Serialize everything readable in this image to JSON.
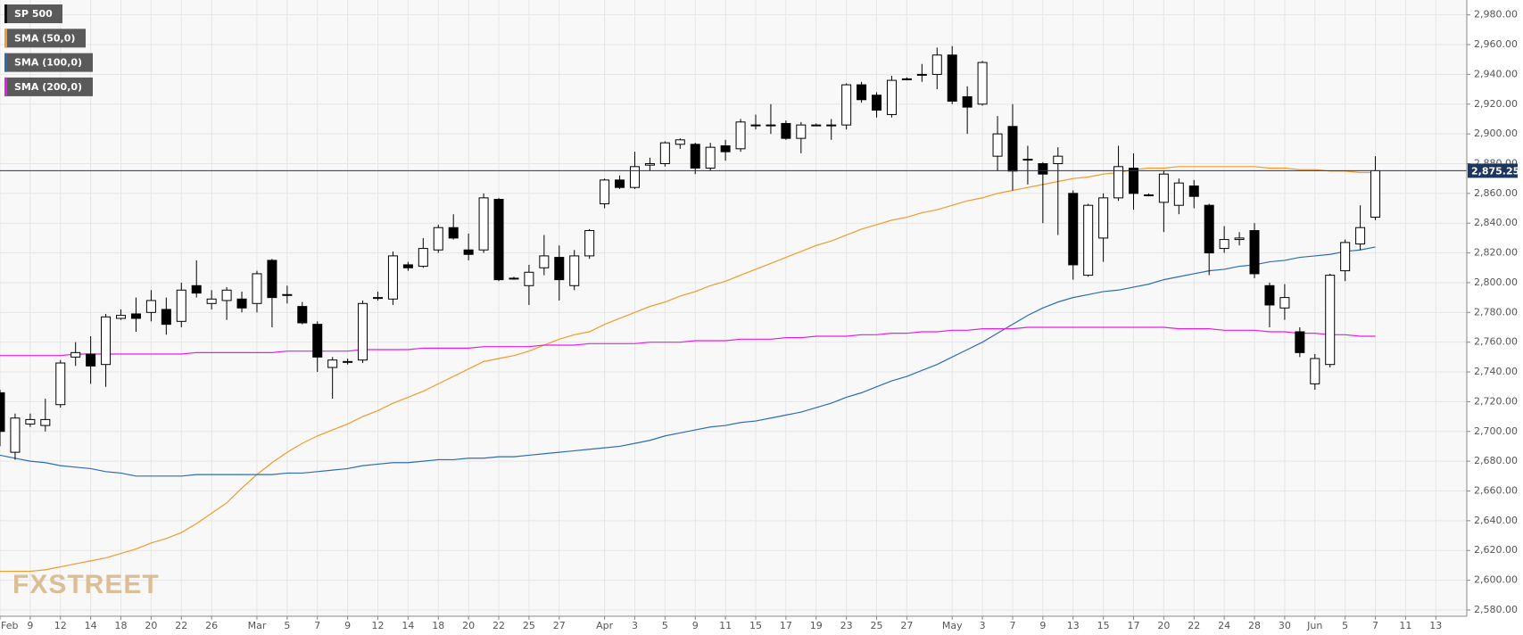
{
  "chart_data": {
    "type": "candlestick",
    "categories": [
      "Feb",
      null,
      "9",
      null,
      "12",
      null,
      "14",
      null,
      "18",
      null,
      "20",
      null,
      "22",
      null,
      "26",
      null,
      null,
      "Mar",
      null,
      "5",
      null,
      "7",
      null,
      "9",
      null,
      "12",
      null,
      "14",
      null,
      "18",
      null,
      "20",
      null,
      "22",
      null,
      "25",
      null,
      "27",
      null,
      null,
      "Apr",
      null,
      "3",
      null,
      "5",
      null,
      "9",
      null,
      "11",
      null,
      "15",
      null,
      "17",
      null,
      "19",
      null,
      "23",
      null,
      "25",
      null,
      "27",
      null,
      null,
      "May",
      null,
      "3",
      null,
      "7",
      null,
      "9",
      null,
      "13",
      null,
      "15",
      null,
      "17",
      null,
      "20",
      null,
      "22",
      null,
      "24",
      null,
      "28",
      null,
      "30",
      null,
      "Jun",
      null,
      "5",
      null,
      "7",
      null,
      "11",
      null,
      "13"
    ],
    "series": [
      {
        "name": "SP 500",
        "type": "candlestick",
        "color": "#000000",
        "open": [
          2726,
          2686,
          2705,
          2704,
          2718,
          2750,
          2752,
          2745,
          2776,
          2779,
          2780,
          2782,
          2774,
          2798,
          2786,
          2788,
          2789,
          2786,
          2815,
          2792,
          2784,
          2772,
          2743,
          2747,
          2748,
          2790,
          2789,
          2812,
          2811,
          2822,
          2837,
          2822,
          2822,
          2856,
          2803,
          2798,
          2810,
          2817,
          2798,
          2818,
          2853,
          2869,
          2864,
          2879,
          2880,
          2893,
          2893,
          2877,
          2892,
          2890,
          2906,
          2906,
          2907,
          2897,
          2906,
          2906,
          2906,
          2933,
          2926,
          2913,
          2937,
          2940,
          2940,
          2953,
          2925,
          2920,
          2885,
          2905,
          2883,
          2880,
          2880,
          2860,
          2805,
          2830,
          2857,
          2877,
          2859,
          2854,
          2852,
          2865,
          2852,
          2823,
          2829,
          2835,
          2798,
          2783,
          2767,
          2732,
          2745,
          2808,
          2826,
          2844,
          null,
          null,
          null,
          null
        ],
        "high": [
          2728,
          2712,
          2712,
          2722,
          2748,
          2760,
          2764,
          2779,
          2782,
          2790,
          2795,
          2790,
          2800,
          2815,
          2795,
          2797,
          2794,
          2808,
          2816,
          2798,
          2787,
          2774,
          2750,
          2749,
          2788,
          2794,
          2821,
          2814,
          2830,
          2839,
          2846,
          2833,
          2860,
          2857,
          2804,
          2812,
          2832,
          2825,
          2822,
          2836,
          2870,
          2872,
          2888,
          2884,
          2895,
          2897,
          2894,
          2894,
          2896,
          2910,
          2913,
          2920,
          2909,
          2908,
          2907,
          2910,
          2934,
          2935,
          2928,
          2939,
          2938,
          2947,
          2958,
          2959,
          2932,
          2949,
          2912,
          2920,
          2892,
          2881,
          2891,
          2862,
          2853,
          2860,
          2892,
          2887,
          2860,
          2875,
          2870,
          2869,
          2853,
          2838,
          2834,
          2840,
          2800,
          2799,
          2770,
          2752,
          2806,
          2829,
          2852,
          2885,
          null,
          null,
          null,
          null
        ],
        "low": [
          2690,
          2681,
          2703,
          2700,
          2716,
          2744,
          2732,
          2730,
          2775,
          2767,
          2774,
          2765,
          2770,
          2790,
          2782,
          2775,
          2780,
          2780,
          2770,
          2786,
          2772,
          2740,
          2722,
          2745,
          2746,
          2788,
          2785,
          2808,
          2810,
          2820,
          2829,
          2815,
          2820,
          2801,
          2802,
          2785,
          2805,
          2788,
          2795,
          2816,
          2850,
          2863,
          2863,
          2875,
          2878,
          2890,
          2873,
          2875,
          2882,
          2888,
          2903,
          2900,
          2896,
          2887,
          2905,
          2896,
          2903,
          2921,
          2911,
          2911,
          2936,
          2935,
          2930,
          2920,
          2900,
          2919,
          2875,
          2862,
          2866,
          2840,
          2832,
          2802,
          2804,
          2814,
          2855,
          2849,
          2858,
          2834,
          2846,
          2850,
          2805,
          2820,
          2825,
          2803,
          2770,
          2775,
          2750,
          2728,
          2743,
          2801,
          2822,
          2842,
          null,
          null,
          null,
          null
        ],
        "close": [
          2700,
          2709,
          2708,
          2708,
          2746,
          2753,
          2744,
          2777,
          2778,
          2776,
          2788,
          2772,
          2795,
          2793,
          2789,
          2795,
          2783,
          2806,
          2790,
          2792,
          2773,
          2750,
          2748,
          2747,
          2786,
          2790,
          2818,
          2810,
          2823,
          2837,
          2830,
          2819,
          2857,
          2802,
          2803,
          2807,
          2818,
          2802,
          2818,
          2835,
          2869,
          2864,
          2878,
          2880,
          2894,
          2896,
          2877,
          2891,
          2888,
          2908,
          2906,
          2906,
          2897,
          2906,
          2906,
          2906,
          2933,
          2923,
          2916,
          2936,
          2937,
          2940,
          2953,
          2922,
          2918,
          2948,
          2900,
          2875,
          2883,
          2873,
          2885,
          2812,
          2852,
          2857,
          2878,
          2860,
          2859,
          2873,
          2867,
          2858,
          2820,
          2829,
          2830,
          2806,
          2785,
          2790,
          2753,
          2749,
          2805,
          2827,
          2837,
          2875.25,
          null,
          null,
          null,
          null
        ]
      },
      {
        "name": "SMA (50,0)",
        "type": "line",
        "color": "#f39a2b",
        "values": [
          2606,
          2606,
          2606,
          2607,
          2609,
          2611,
          2613,
          2615,
          2618,
          2621,
          2625,
          2628,
          2632,
          2638,
          2645,
          2652,
          2662,
          2671,
          2679,
          2686,
          2692,
          2697,
          2701,
          2705,
          2710,
          2714,
          2719,
          2723,
          2727,
          2732,
          2737,
          2742,
          2747,
          2749,
          2751,
          2754,
          2758,
          2762,
          2765,
          2767,
          2772,
          2776,
          2780,
          2784,
          2787,
          2791,
          2794,
          2798,
          2801,
          2805,
          2809,
          2813,
          2817,
          2821,
          2825,
          2828,
          2832,
          2836,
          2839,
          2842,
          2844,
          2847,
          2849,
          2852,
          2855,
          2857,
          2860,
          2862,
          2864,
          2866,
          2868,
          2870,
          2871,
          2873,
          2874,
          2876,
          2877,
          2877,
          2878,
          2878,
          2878,
          2878,
          2878,
          2878,
          2877,
          2877,
          2876,
          2876,
          2875,
          2875,
          2874,
          2874,
          null,
          null,
          null,
          null
        ]
      },
      {
        "name": "SMA (100,0)",
        "type": "line",
        "color": "#2d6cb5",
        "values": [
          2684,
          2682,
          2680,
          2679,
          2677,
          2676,
          2675,
          2673,
          2672,
          2670,
          2670,
          2670,
          2670,
          2671,
          2671,
          2671,
          2671,
          2671,
          2671,
          2672,
          2672,
          2673,
          2674,
          2675,
          2677,
          2678,
          2679,
          2679,
          2680,
          2681,
          2681,
          2682,
          2682,
          2683,
          2683,
          2684,
          2685,
          2686,
          2687,
          2688,
          2689,
          2690,
          2692,
          2694,
          2697,
          2699,
          2701,
          2703,
          2704,
          2706,
          2707,
          2709,
          2711,
          2713,
          2716,
          2719,
          2723,
          2726,
          2730,
          2734,
          2737,
          2741,
          2745,
          2750,
          2755,
          2760,
          2766,
          2772,
          2778,
          2783,
          2787,
          2790,
          2792,
          2794,
          2795,
          2797,
          2799,
          2802,
          2804,
          2806,
          2808,
          2809,
          2811,
          2812,
          2814,
          2815,
          2817,
          2818,
          2819,
          2821,
          2822,
          2824,
          null,
          null,
          null,
          null
        ]
      },
      {
        "name": "SMA (200,0)",
        "type": "line",
        "color": "#e81ce8",
        "values": [
          2751,
          2751,
          2751,
          2751,
          2751,
          2752,
          2752,
          2752,
          2752,
          2752,
          2752,
          2752,
          2752,
          2753,
          2753,
          2753,
          2753,
          2753,
          2753,
          2754,
          2754,
          2754,
          2754,
          2754,
          2755,
          2755,
          2755,
          2755,
          2756,
          2756,
          2756,
          2756,
          2757,
          2757,
          2757,
          2757,
          2758,
          2758,
          2758,
          2759,
          2759,
          2759,
          2759,
          2760,
          2760,
          2760,
          2761,
          2761,
          2761,
          2762,
          2762,
          2762,
          2763,
          2763,
          2764,
          2764,
          2764,
          2765,
          2765,
          2766,
          2766,
          2767,
          2767,
          2768,
          2768,
          2769,
          2769,
          2769,
          2770,
          2770,
          2770,
          2770,
          2770,
          2770,
          2770,
          2770,
          2770,
          2770,
          2769,
          2769,
          2769,
          2768,
          2768,
          2768,
          2767,
          2767,
          2766,
          2766,
          2765,
          2765,
          2764,
          2764,
          null,
          null,
          null,
          null
        ]
      }
    ],
    "ylim": [
      2576,
      2990
    ],
    "yticks": [
      {
        "value": 2580,
        "label": "2,580.00"
      },
      {
        "value": 2600,
        "label": "2,600.00"
      },
      {
        "value": 2620,
        "label": "2,620.00"
      },
      {
        "value": 2640,
        "label": "2,640.00"
      },
      {
        "value": 2660,
        "label": "2,660.00"
      },
      {
        "value": 2680,
        "label": "2,680.00"
      },
      {
        "value": 2700,
        "label": "2,700.00"
      },
      {
        "value": 2720,
        "label": "2,720.00"
      },
      {
        "value": 2740,
        "label": "2,740.00"
      },
      {
        "value": 2760,
        "label": "2,760.00"
      },
      {
        "value": 2780,
        "label": "2,780.00"
      },
      {
        "value": 2800,
        "label": "2,800.00"
      },
      {
        "value": 2820,
        "label": "2,820.00"
      },
      {
        "value": 2840,
        "label": "2,840.00"
      },
      {
        "value": 2860,
        "label": "2,860.00"
      },
      {
        "value": 2880,
        "label": "2,880.00"
      },
      {
        "value": 2900,
        "label": "2,900.00"
      },
      {
        "value": 2920,
        "label": "2,920.00"
      },
      {
        "value": 2940,
        "label": "2,940.00"
      },
      {
        "value": 2960,
        "label": "2,960.00"
      },
      {
        "value": 2980,
        "label": "2,980.00"
      }
    ],
    "grid": true,
    "last_price": {
      "value": 2875.25,
      "label": "2,875.25",
      "color": "#1c3660"
    },
    "watermark": "FXSTREET"
  }
}
